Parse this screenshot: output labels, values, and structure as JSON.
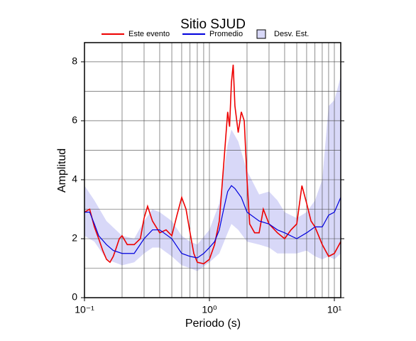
{
  "chart_data": {
    "type": "line",
    "title": "Sitio SJUD",
    "xlabel": "Periodo (s)",
    "ylabel": "Amplitud",
    "xscale": "log",
    "xlim": [
      0.1,
      11.25
    ],
    "ylim": [
      0,
      8.65
    ],
    "xticks": [
      {
        "value": 0.1,
        "label": "10⁻¹"
      },
      {
        "value": 1,
        "label": "10⁰"
      },
      {
        "value": 10,
        "label": "10¹"
      }
    ],
    "xgrid": [
      0.2,
      0.3,
      0.4,
      0.5,
      0.6,
      0.7,
      0.8,
      0.9,
      1,
      2,
      3,
      4,
      5,
      6,
      7,
      8,
      9,
      10
    ],
    "yticks": [
      0,
      2,
      4,
      6,
      8
    ],
    "ygrid": [
      1,
      2,
      3,
      4,
      5,
      6,
      7,
      8
    ],
    "grid": true,
    "legend": "top",
    "band": {
      "name": "Desv. Est.",
      "color": "#d8d8f8",
      "x": [
        0.1,
        0.12,
        0.15,
        0.2,
        0.25,
        0.3,
        0.35,
        0.4,
        0.5,
        0.6,
        0.7,
        0.8,
        1.0,
        1.2,
        1.4,
        1.5,
        1.7,
        2.0,
        2.5,
        3.0,
        3.5,
        4.0,
        5.0,
        6.0,
        7.0,
        8.0,
        9.0,
        10,
        11.25
      ],
      "lower": [
        2.1,
        1.9,
        1.3,
        1.1,
        1.2,
        1.5,
        1.7,
        1.7,
        1.4,
        1.1,
        1.0,
        0.9,
        1.2,
        1.5,
        2.2,
        2.5,
        2.3,
        1.9,
        1.8,
        1.7,
        1.5,
        1.5,
        1.5,
        1.6,
        1.4,
        1.3,
        1.4,
        1.3,
        1.5
      ],
      "upper": [
        3.8,
        3.3,
        2.6,
        2.1,
        2.0,
        2.6,
        3.0,
        2.9,
        2.6,
        2.1,
        1.9,
        1.8,
        2.3,
        3.2,
        5.2,
        5.7,
        5.3,
        4.3,
        3.5,
        3.6,
        3.3,
        2.9,
        2.7,
        2.9,
        3.3,
        4.0,
        6.5,
        6.7,
        7.5
      ]
    },
    "series": [
      {
        "name": "Este evento",
        "color": "#ee0000",
        "x": [
          0.1,
          0.11,
          0.12,
          0.13,
          0.14,
          0.15,
          0.16,
          0.17,
          0.18,
          0.19,
          0.2,
          0.22,
          0.25,
          0.28,
          0.3,
          0.32,
          0.35,
          0.4,
          0.45,
          0.5,
          0.55,
          0.6,
          0.65,
          0.7,
          0.75,
          0.8,
          0.9,
          1.0,
          1.1,
          1.2,
          1.3,
          1.4,
          1.45,
          1.5,
          1.55,
          1.6,
          1.7,
          1.8,
          1.9,
          2.0,
          2.1,
          2.3,
          2.5,
          2.7,
          3.0,
          3.5,
          4.0,
          4.5,
          5.0,
          5.5,
          6.0,
          6.5,
          7.0,
          8.0,
          9.0,
          10,
          11.25
        ],
        "values": [
          2.9,
          3.0,
          2.4,
          2.0,
          1.6,
          1.3,
          1.2,
          1.4,
          1.7,
          2.0,
          2.1,
          1.8,
          1.8,
          2.0,
          2.7,
          3.1,
          2.6,
          2.2,
          2.3,
          2.1,
          2.8,
          3.4,
          3.0,
          2.2,
          1.5,
          1.2,
          1.15,
          1.3,
          1.8,
          2.6,
          4.5,
          6.3,
          5.8,
          7.3,
          7.9,
          6.5,
          5.6,
          6.3,
          6.0,
          4.0,
          2.5,
          2.2,
          2.2,
          3.0,
          2.5,
          2.2,
          2.0,
          2.3,
          2.5,
          3.8,
          3.2,
          2.6,
          2.4,
          1.8,
          1.4,
          1.5,
          1.9
        ]
      },
      {
        "name": "Promedio",
        "color": "#0000dd",
        "x": [
          0.1,
          0.11,
          0.12,
          0.13,
          0.15,
          0.17,
          0.2,
          0.25,
          0.3,
          0.35,
          0.4,
          0.5,
          0.6,
          0.7,
          0.8,
          0.9,
          1.0,
          1.1,
          1.2,
          1.3,
          1.4,
          1.5,
          1.6,
          1.8,
          2.0,
          2.5,
          3.0,
          3.5,
          4.0,
          5.0,
          6.0,
          7.0,
          8.0,
          9.0,
          10,
          11.25
        ],
        "values": [
          2.9,
          2.9,
          2.5,
          2.1,
          1.8,
          1.6,
          1.5,
          1.5,
          2.0,
          2.3,
          2.3,
          2.0,
          1.5,
          1.4,
          1.35,
          1.5,
          1.7,
          1.9,
          2.3,
          3.0,
          3.6,
          3.8,
          3.7,
          3.4,
          2.9,
          2.6,
          2.5,
          2.3,
          2.2,
          2.0,
          2.2,
          2.4,
          2.4,
          2.8,
          2.9,
          3.4
        ]
      }
    ]
  }
}
